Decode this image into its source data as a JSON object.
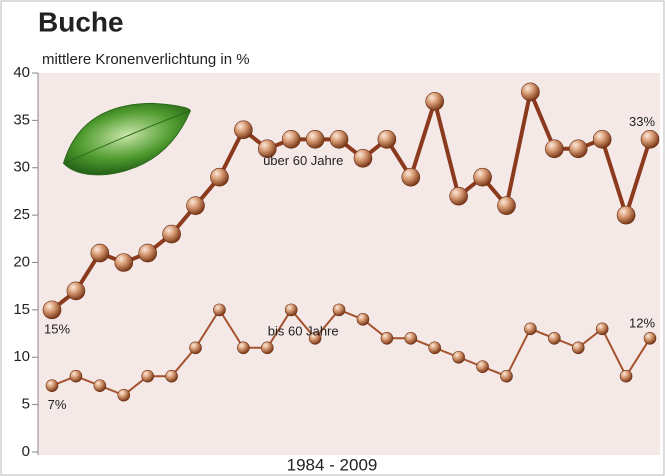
{
  "chart_data": {
    "type": "line",
    "title": "Buche",
    "subtitle": "mittlere Kronenverlichtung in %",
    "x_label": "1984 - 2009",
    "ylim": [
      0,
      40
    ],
    "yticks": [
      0,
      5,
      10,
      15,
      20,
      25,
      30,
      35,
      40
    ],
    "series": [
      {
        "name": "über 60 Jahre",
        "color": "#8b3a1e",
        "values": [
          15,
          17,
          21,
          20,
          21,
          23,
          26,
          29,
          34,
          32,
          33,
          33,
          33,
          31,
          33,
          29,
          37,
          27,
          29,
          26,
          38,
          32,
          32,
          33,
          25,
          33
        ],
        "value_labels": [
          "15%",
          null,
          null,
          null,
          null,
          null,
          null,
          null,
          null,
          null,
          null,
          null,
          null,
          null,
          null,
          null,
          null,
          null,
          null,
          null,
          null,
          null,
          null,
          null,
          null,
          "33%"
        ]
      },
      {
        "name": "bis 60 Jahre",
        "color": "#a5532f",
        "values": [
          7,
          8,
          7,
          6,
          8,
          8,
          11,
          15,
          11,
          11,
          15,
          12,
          15,
          14,
          12,
          12,
          11,
          10,
          9,
          8,
          13,
          12,
          11,
          13,
          8,
          12
        ],
        "value_labels": [
          "7%",
          null,
          null,
          null,
          null,
          null,
          null,
          null,
          null,
          null,
          null,
          null,
          null,
          null,
          null,
          null,
          null,
          null,
          null,
          null,
          null,
          null,
          null,
          null,
          null,
          "12%"
        ]
      }
    ]
  }
}
